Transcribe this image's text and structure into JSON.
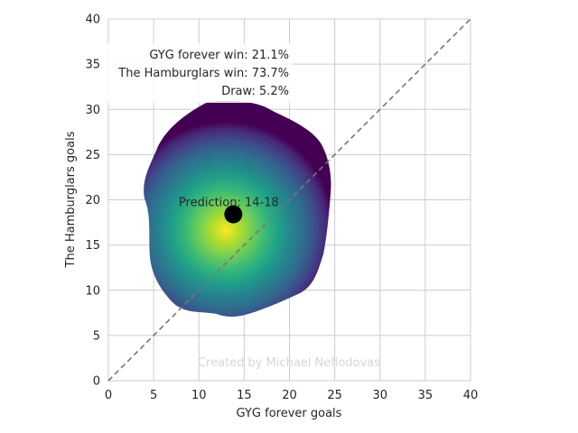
{
  "chart_data": {
    "type": "heatmap",
    "title": "",
    "xlabel": "GYG forever goals",
    "ylabel": "The Hamburglars goals",
    "xlim": [
      0,
      40
    ],
    "ylim": [
      0,
      40
    ],
    "xticks": [
      0,
      5,
      10,
      15,
      20,
      25,
      30,
      35,
      40
    ],
    "yticks": [
      0,
      5,
      10,
      15,
      20,
      25,
      30,
      35,
      40
    ],
    "grid": true,
    "colormap": "viridis",
    "density_peak": [
      13,
      18
    ],
    "density_extent_x": [
      4,
      24.5
    ],
    "density_extent_y": [
      7,
      31
    ],
    "diagonal_line": {
      "from": [
        0,
        0
      ],
      "to": [
        40,
        40
      ],
      "style": "dashed",
      "color": "#777777"
    },
    "prediction_point": {
      "x": 13.8,
      "y": 18.4,
      "color": "#000000"
    },
    "annotations": {
      "home_win": "GYG forever win: 21.1%",
      "away_win": "The Hamburglars win: 73.7%",
      "draw": "Draw: 5.2%",
      "prediction": "Prediction: 14-18"
    },
    "watermark": "Created by Michael Nefiodovas"
  }
}
